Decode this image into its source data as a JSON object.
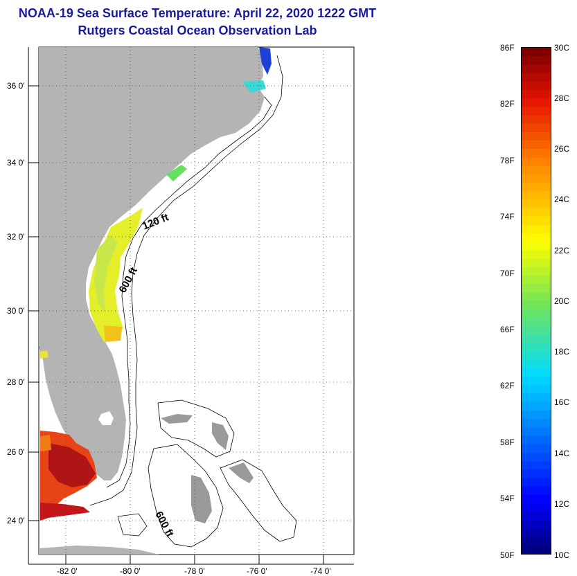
{
  "title": "NOAA-19 Sea Surface Temperature:  April 22, 2020 1222 GMT",
  "subtitle": "Rutgers Coastal Ocean Observation Lab",
  "map": {
    "lat_ticks": [
      "36 0'",
      "34 0'",
      "32 0'",
      "30 0'",
      "28 0'",
      "26 0'",
      "24 0'"
    ],
    "lon_ticks": [
      "-82 0'",
      "-80 0'",
      "-78 0'",
      "-76 0'",
      "-74 0'"
    ],
    "contour_labels": [
      "120 ft",
      "600 ft",
      "600 ft"
    ],
    "colors": {
      "land": "#b4b4b4",
      "ocean": "#ffffff",
      "title": "#1a1a9e"
    }
  },
  "colorbar": {
    "fahrenheit_labels": [
      "86F",
      "82F",
      "78F",
      "74F",
      "70F",
      "66F",
      "62F",
      "58F",
      "54F",
      "50F"
    ],
    "celsius_labels": [
      "30C",
      "28C",
      "26C",
      "24C",
      "22C",
      "20C",
      "18C",
      "16C",
      "14C",
      "12C",
      "10C"
    ],
    "range_c": [
      10,
      30
    ],
    "range_f": [
      50,
      86
    ]
  }
}
